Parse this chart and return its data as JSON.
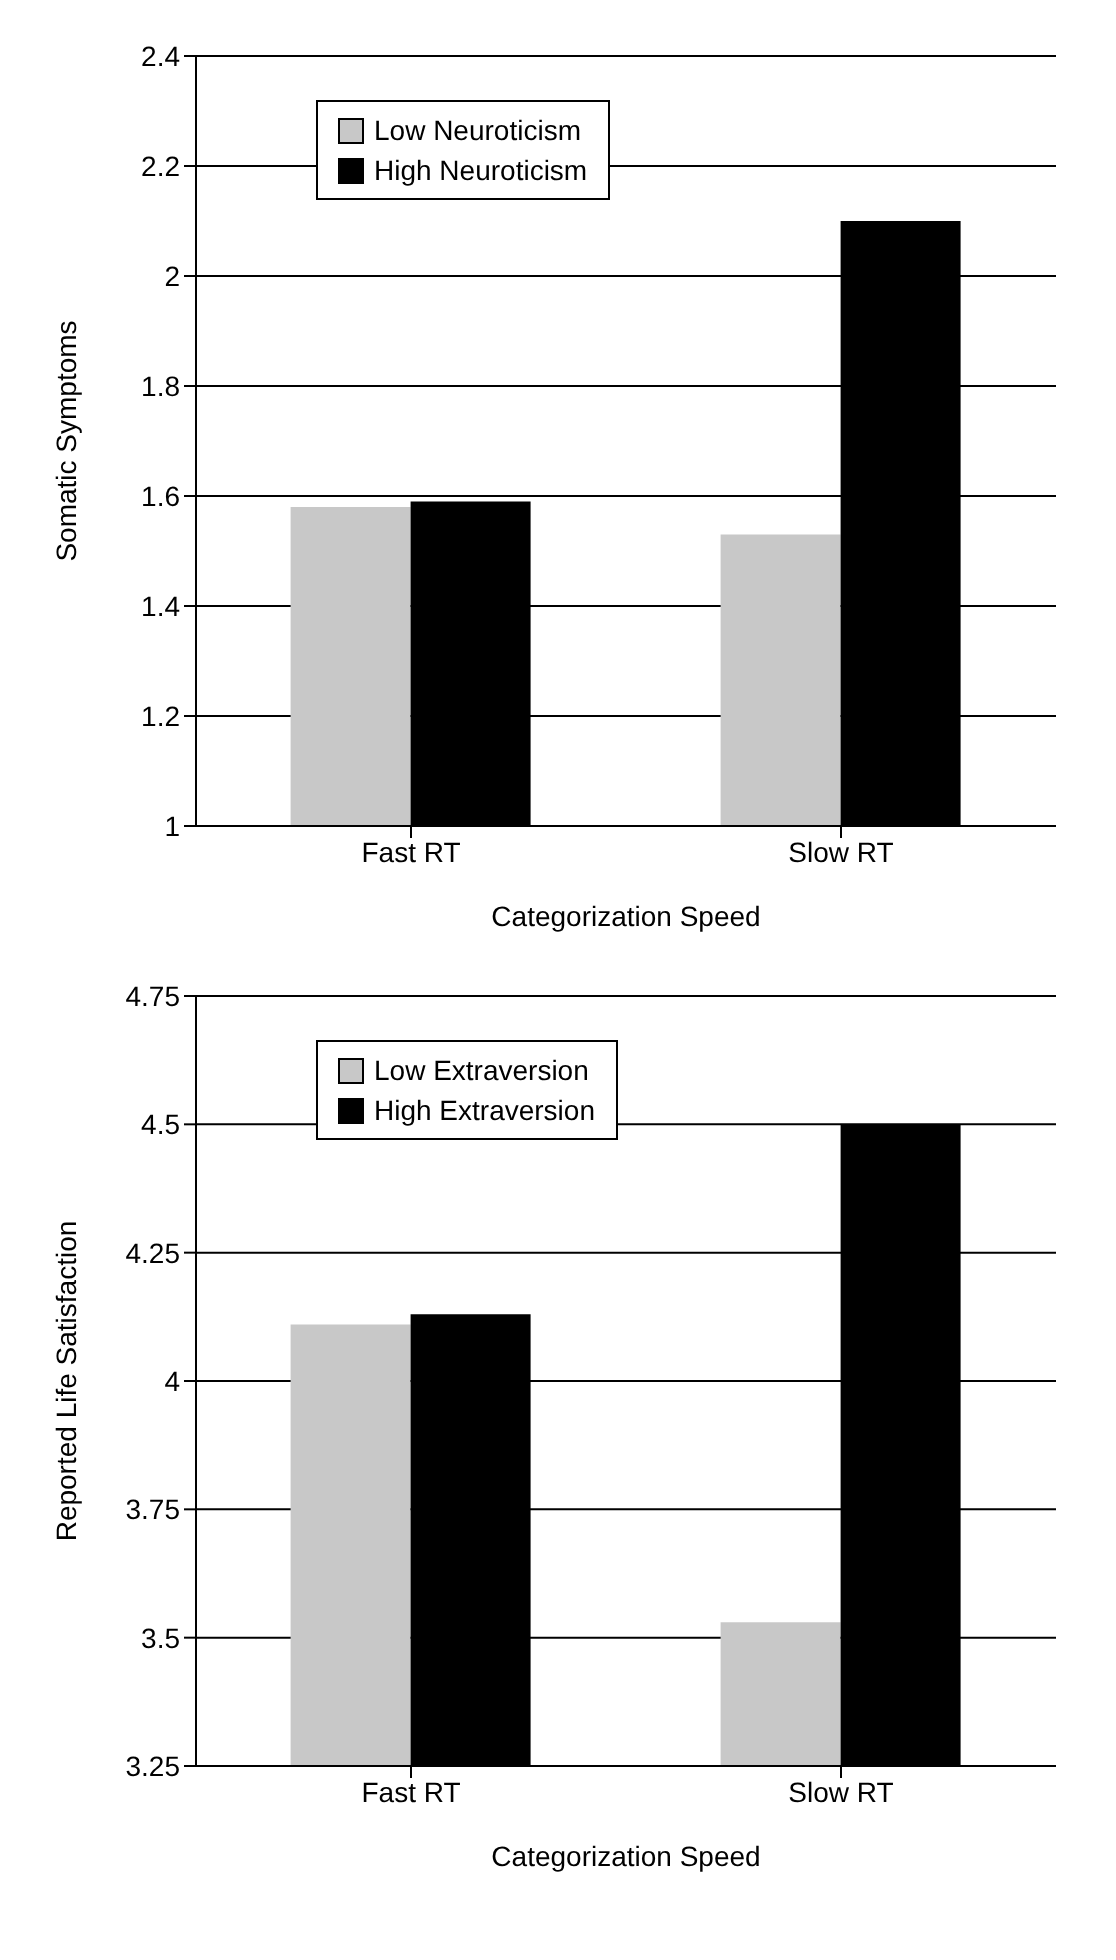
{
  "chart_data": [
    {
      "type": "bar",
      "xlabel": "Categorization Speed",
      "ylabel": "Somatic Symptoms",
      "categories": [
        "Fast RT",
        "Slow RT"
      ],
      "series": [
        {
          "name": "Low Neuroticism",
          "color": "#c8c8c8",
          "values": [
            1.58,
            1.53
          ]
        },
        {
          "name": "High Neuroticism",
          "color": "#000000",
          "values": [
            1.59,
            2.1
          ]
        }
      ],
      "ylim": [
        1,
        2.4
      ],
      "yticks": [
        1,
        1.2,
        1.4,
        1.6,
        1.8,
        2,
        2.2,
        2.4
      ],
      "grid": "y",
      "legend": "top left"
    },
    {
      "type": "bar",
      "xlabel": "Categorization Speed",
      "ylabel": "Reported Life Satisfaction",
      "categories": [
        "Fast RT",
        "Slow RT"
      ],
      "series": [
        {
          "name": "Low Extraversion",
          "color": "#c8c8c8",
          "values": [
            4.11,
            3.53
          ]
        },
        {
          "name": "High Extraversion",
          "color": "#000000",
          "values": [
            4.13,
            4.5
          ]
        }
      ],
      "ylim": [
        3.25,
        4.75
      ],
      "yticks": [
        3.25,
        3.5,
        3.75,
        4,
        4.25,
        4.5,
        4.75
      ],
      "grid": "y",
      "legend": "top left"
    }
  ]
}
